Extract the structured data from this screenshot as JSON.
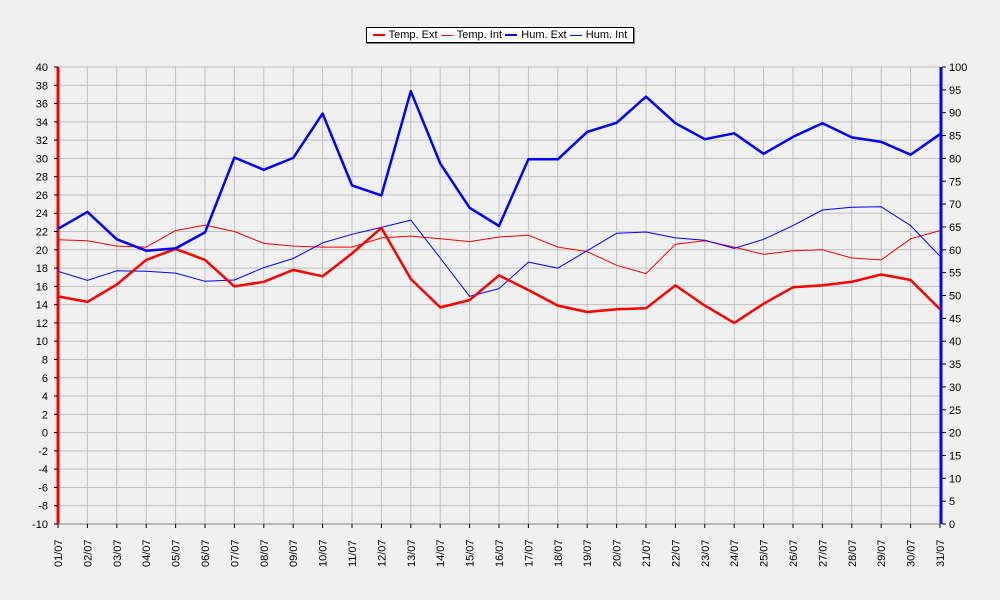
{
  "chart_data": {
    "type": "line",
    "title": "",
    "xlabel": "",
    "ylabel": "",
    "y2label": "",
    "legend_position": "top-center",
    "grid": true,
    "ylim": [
      -10,
      40
    ],
    "y_ticks": [
      -10,
      -8,
      -6,
      -4,
      -2,
      0,
      2,
      4,
      6,
      8,
      10,
      12,
      14,
      16,
      18,
      20,
      22,
      24,
      26,
      28,
      30,
      32,
      34,
      36,
      38,
      40
    ],
    "y2lim": [
      0,
      100
    ],
    "y2_ticks": [
      0,
      5,
      10,
      15,
      20,
      25,
      30,
      35,
      40,
      45,
      50,
      55,
      60,
      65,
      70,
      75,
      80,
      85,
      90,
      95,
      100
    ],
    "categories": [
      "01/07",
      "02/07",
      "03/07",
      "04/07",
      "05/07",
      "06/07",
      "07/07",
      "08/07",
      "09/07",
      "10/07",
      "11/07",
      "12/07",
      "13/07",
      "14/07",
      "15/07",
      "16/07",
      "17/07",
      "18/07",
      "19/07",
      "20/07",
      "21/07",
      "22/07",
      "23/07",
      "24/07",
      "25/07",
      "26/07",
      "27/07",
      "28/07",
      "29/07",
      "30/07",
      "31/07"
    ],
    "series": [
      {
        "name": "Temp. Ext",
        "axis": "left",
        "color": "#ff0000",
        "width": 2.5,
        "values": [
          14.9,
          14.3,
          16.2,
          18.9,
          20.1,
          18.9,
          16.0,
          16.5,
          17.8,
          17.1,
          19.6,
          22.4,
          16.8,
          13.7,
          14.5,
          17.2,
          15.6,
          13.9,
          13.2,
          13.5,
          13.6,
          16.1,
          13.9,
          12.0,
          14.1,
          15.9,
          16.1,
          16.5,
          17.3,
          16.7,
          13.5
        ]
      },
      {
        "name": "Temp. Int",
        "axis": "left",
        "color": "#ff0000",
        "width": 1,
        "values": [
          21.1,
          21.0,
          20.4,
          20.3,
          22.1,
          22.7,
          22.0,
          20.7,
          20.4,
          20.3,
          20.3,
          21.3,
          21.5,
          21.2,
          20.9,
          21.4,
          21.6,
          20.3,
          19.8,
          18.3,
          17.4,
          20.6,
          21.0,
          20.3,
          19.5,
          19.9,
          20.0,
          19.1,
          18.9,
          21.2,
          22.1
        ]
      },
      {
        "name": "Hum. Ext",
        "axis": "right",
        "color": "#0000ff",
        "width": 2.5,
        "values": [
          64.6,
          68.3,
          62.3,
          59.8,
          60.3,
          63.8,
          80.2,
          77.5,
          80.1,
          89.8,
          74.1,
          71.9,
          94.7,
          78.9,
          69.2,
          65.2,
          79.8,
          79.8,
          85.8,
          87.8,
          93.5,
          87.7,
          84.2,
          85.5,
          81.0,
          84.7,
          87.7,
          84.6,
          83.6,
          80.8,
          85.3
        ]
      },
      {
        "name": "Hum. Int",
        "axis": "right",
        "color": "#0000ff",
        "width": 1,
        "values": [
          55.3,
          53.3,
          55.4,
          55.3,
          54.9,
          53.1,
          53.4,
          56.1,
          58.1,
          61.5,
          63.4,
          64.9,
          66.5,
          58.2,
          49.8,
          51.5,
          57.3,
          56.0,
          59.8,
          63.6,
          63.9,
          62.6,
          62.1,
          60.3,
          62.3,
          65.3,
          68.7,
          69.3,
          69.4,
          65.3,
          58.6
        ]
      }
    ]
  }
}
